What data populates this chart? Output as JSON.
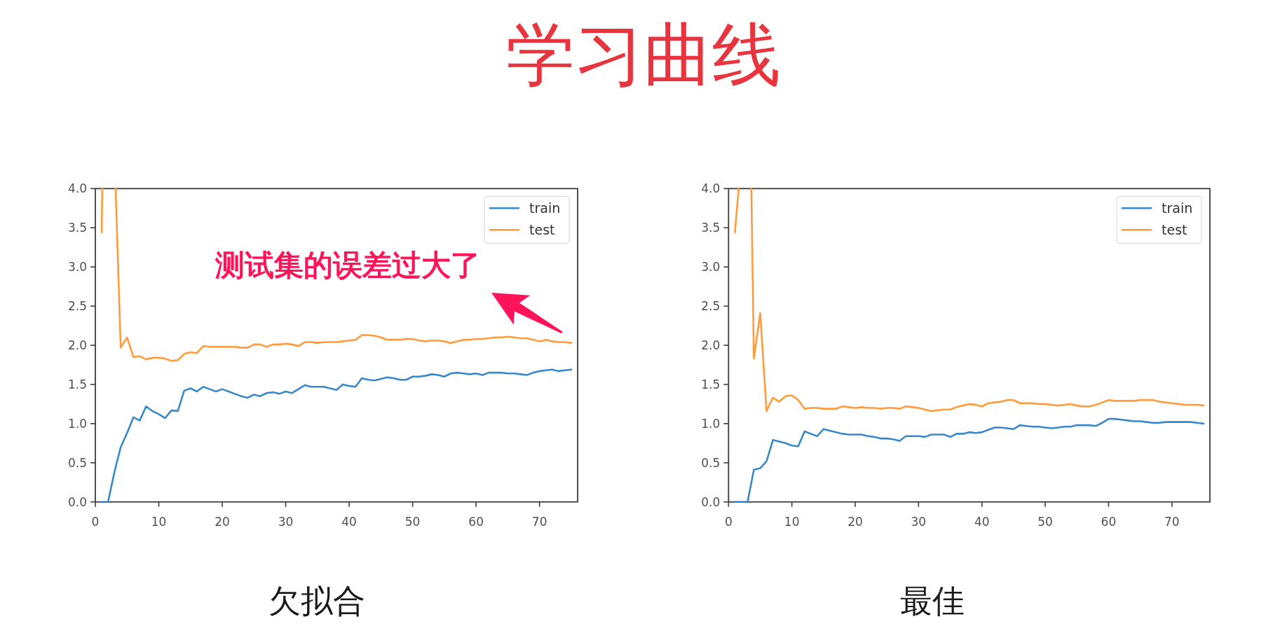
{
  "chart_data": [
    {
      "type": "line",
      "title": "学习曲线",
      "xlabel": "欠拟合",
      "legend": "top right",
      "xlim": [
        0,
        76
      ],
      "ylim": [
        0,
        4
      ],
      "xticks": [
        0,
        10,
        20,
        30,
        40,
        50,
        60,
        70
      ],
      "yticks": [
        {
          "value": 0,
          "label": "0.0"
        },
        {
          "value": 0.5,
          "label": "0.5"
        },
        {
          "value": 1,
          "label": "1.0"
        },
        {
          "value": 1.5,
          "label": "1.5"
        },
        {
          "value": 2,
          "label": "2.0"
        },
        {
          "value": 2.5,
          "label": "2.5"
        },
        {
          "value": 3,
          "label": "3.0"
        },
        {
          "value": 3.5,
          "label": "3.5"
        },
        {
          "value": 4,
          "label": "4.0"
        }
      ],
      "x": [
        1,
        2,
        3,
        4,
        5,
        6,
        7,
        8,
        9,
        10,
        11,
        12,
        13,
        14,
        15,
        16,
        17,
        18,
        19,
        20,
        21,
        22,
        23,
        24,
        25,
        26,
        27,
        28,
        29,
        30,
        31,
        32,
        33,
        34,
        35,
        36,
        37,
        38,
        39,
        40,
        41,
        42,
        43,
        44,
        45,
        46,
        47,
        48,
        49,
        50,
        51,
        52,
        53,
        54,
        55,
        56,
        57,
        58,
        59,
        60,
        61,
        62,
        63,
        64,
        65,
        66,
        67,
        68,
        69,
        70,
        71,
        72,
        73,
        74,
        75
      ],
      "series": [
        {
          "name": "train",
          "color": "#3a88cc",
          "values": [
            0,
            0,
            0.38,
            0.7,
            0.88,
            1.08,
            1.04,
            1.22,
            1.16,
            1.12,
            1.07,
            1.17,
            1.16,
            1.42,
            1.45,
            1.41,
            1.47,
            1.44,
            1.41,
            1.44,
            1.41,
            1.38,
            1.35,
            1.33,
            1.37,
            1.35,
            1.39,
            1.4,
            1.38,
            1.41,
            1.39,
            1.44,
            1.49,
            1.47,
            1.47,
            1.47,
            1.45,
            1.43,
            1.5,
            1.48,
            1.47,
            1.58,
            1.56,
            1.55,
            1.57,
            1.59,
            1.58,
            1.56,
            1.56,
            1.6,
            1.6,
            1.61,
            1.63,
            1.62,
            1.6,
            1.64,
            1.65,
            1.64,
            1.63,
            1.64,
            1.62,
            1.65,
            1.65,
            1.65,
            1.64,
            1.64,
            1.63,
            1.62,
            1.65,
            1.67,
            1.68,
            1.69,
            1.67,
            1.68,
            1.69
          ]
        },
        {
          "name": "test",
          "color": "#ff9b3a",
          "x": [
            1,
            1.1,
            2,
            3.2,
            4,
            5,
            6,
            7,
            8,
            9,
            10,
            11,
            12,
            13,
            14,
            15,
            16,
            17,
            18,
            19,
            20,
            21,
            22,
            23,
            24,
            25,
            26,
            27,
            28,
            29,
            30,
            31,
            32,
            33,
            34,
            35,
            36,
            37,
            38,
            39,
            40,
            41,
            42,
            43,
            44,
            45,
            46,
            47,
            48,
            49,
            50,
            51,
            52,
            53,
            54,
            55,
            56,
            57,
            58,
            59,
            60,
            61,
            62,
            63,
            64,
            65,
            66,
            67,
            68,
            69,
            70,
            71,
            72,
            73,
            74,
            75
          ],
          "values": [
            3.44,
            4,
            null,
            4,
            1.97,
            2.1,
            1.85,
            1.86,
            1.82,
            1.84,
            1.84,
            1.83,
            1.8,
            1.81,
            1.89,
            1.91,
            1.9,
            1.99,
            1.98,
            1.98,
            1.98,
            1.98,
            1.98,
            1.97,
            1.97,
            2.01,
            2.01,
            1.98,
            2.01,
            2.01,
            2.02,
            2.01,
            1.99,
            2.04,
            2.04,
            2.03,
            2.04,
            2.04,
            2.04,
            2.05,
            2.06,
            2.07,
            2.13,
            2.13,
            2.12,
            2.1,
            2.07,
            2.07,
            2.07,
            2.08,
            2.08,
            2.06,
            2.05,
            2.06,
            2.06,
            2.05,
            2.03,
            2.05,
            2.07,
            2.07,
            2.08,
            2.08,
            2.09,
            2.1,
            2.1,
            2.11,
            2.1,
            2.09,
            2.09,
            2.07,
            2.05,
            2.07,
            2.05,
            2.04,
            2.04,
            2.03
          ]
        }
      ],
      "annotations": [
        "测试集的误差过大了"
      ]
    },
    {
      "type": "line",
      "xlabel": "最佳",
      "legend": "top right",
      "xlim": [
        0,
        76
      ],
      "ylim": [
        0,
        4
      ],
      "xticks": [
        0,
        10,
        20,
        30,
        40,
        50,
        60,
        70
      ],
      "yticks": [
        {
          "value": 0,
          "label": "0.0"
        },
        {
          "value": 0.5,
          "label": "0.5"
        },
        {
          "value": 1,
          "label": "1.0"
        },
        {
          "value": 1.5,
          "label": "1.5"
        },
        {
          "value": 2,
          "label": "2.0"
        },
        {
          "value": 2.5,
          "label": "2.5"
        },
        {
          "value": 3,
          "label": "3.0"
        },
        {
          "value": 3.5,
          "label": "3.5"
        },
        {
          "value": 4,
          "label": "4.0"
        }
      ],
      "x": [
        1,
        2,
        3,
        4,
        5,
        6,
        7,
        8,
        9,
        10,
        11,
        12,
        13,
        14,
        15,
        16,
        17,
        18,
        19,
        20,
        21,
        22,
        23,
        24,
        25,
        26,
        27,
        28,
        29,
        30,
        31,
        32,
        33,
        34,
        35,
        36,
        37,
        38,
        39,
        40,
        41,
        42,
        43,
        44,
        45,
        46,
        47,
        48,
        49,
        50,
        51,
        52,
        53,
        54,
        55,
        56,
        57,
        58,
        59,
        60,
        61,
        62,
        63,
        64,
        65,
        66,
        67,
        68,
        69,
        70,
        71,
        72,
        73,
        74,
        75
      ],
      "series": [
        {
          "name": "train",
          "color": "#3a88cc",
          "values": [
            0,
            0,
            0,
            0.41,
            0.43,
            0.52,
            0.79,
            0.77,
            0.75,
            0.72,
            0.71,
            0.9,
            0.87,
            0.84,
            0.93,
            0.91,
            0.89,
            0.87,
            0.86,
            0.86,
            0.86,
            0.84,
            0.83,
            0.81,
            0.81,
            0.8,
            0.78,
            0.84,
            0.84,
            0.84,
            0.83,
            0.86,
            0.86,
            0.86,
            0.83,
            0.87,
            0.87,
            0.89,
            0.88,
            0.89,
            0.92,
            0.95,
            0.95,
            0.94,
            0.93,
            0.98,
            0.97,
            0.96,
            0.96,
            0.95,
            0.94,
            0.95,
            0.96,
            0.96,
            0.98,
            0.98,
            0.98,
            0.97,
            1.01,
            1.06,
            1.06,
            1.05,
            1.04,
            1.03,
            1.03,
            1.02,
            1.01,
            1.01,
            1.02,
            1.02,
            1.02,
            1.02,
            1.02,
            1.01,
            1.0
          ]
        },
        {
          "name": "test",
          "color": "#ff9b3a",
          "x": [
            1,
            1.6,
            2,
            3.6,
            4,
            5,
            6,
            7,
            8,
            9,
            10,
            11,
            12,
            13,
            14,
            15,
            16,
            17,
            18,
            19,
            20,
            21,
            22,
            23,
            24,
            25,
            26,
            27,
            28,
            29,
            30,
            31,
            32,
            33,
            34,
            35,
            36,
            37,
            38,
            39,
            40,
            41,
            42,
            43,
            44,
            45,
            46,
            47,
            48,
            49,
            50,
            51,
            52,
            53,
            54,
            55,
            56,
            57,
            58,
            59,
            60,
            61,
            62,
            63,
            64,
            65,
            66,
            67,
            68,
            69,
            70,
            71,
            72,
            73,
            74,
            75
          ],
          "values": [
            3.44,
            4,
            null,
            4,
            1.83,
            2.41,
            1.16,
            1.33,
            1.28,
            1.35,
            1.36,
            1.3,
            1.19,
            1.2,
            1.2,
            1.19,
            1.19,
            1.19,
            1.22,
            1.21,
            1.2,
            1.21,
            1.2,
            1.2,
            1.19,
            1.2,
            1.2,
            1.19,
            1.22,
            1.21,
            1.2,
            1.18,
            1.16,
            1.17,
            1.18,
            1.18,
            1.21,
            1.23,
            1.25,
            1.24,
            1.22,
            1.26,
            1.27,
            1.28,
            1.3,
            1.3,
            1.26,
            1.26,
            1.26,
            1.25,
            1.25,
            1.24,
            1.23,
            1.24,
            1.25,
            1.23,
            1.22,
            1.22,
            1.24,
            1.27,
            1.3,
            1.29,
            1.29,
            1.29,
            1.29,
            1.3,
            1.3,
            1.3,
            1.28,
            1.27,
            1.26,
            1.25,
            1.24,
            1.24,
            1.24,
            1.23
          ]
        }
      ]
    }
  ]
}
